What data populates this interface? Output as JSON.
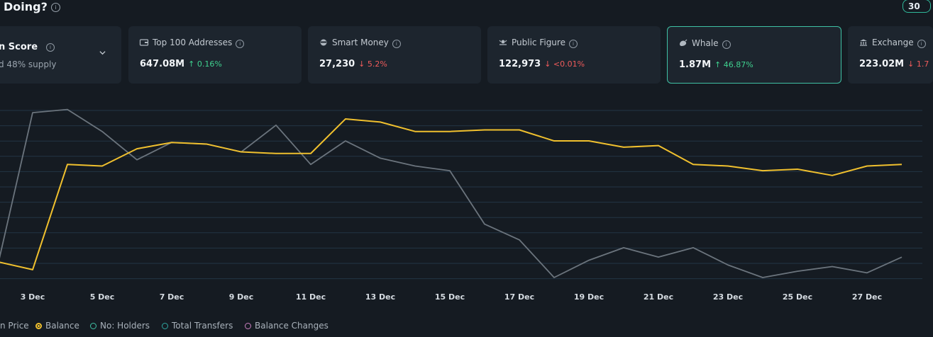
{
  "header": {
    "title": "Doing?",
    "period_button": "30"
  },
  "cards": {
    "score": {
      "name": "n Score",
      "sub": "d 48% supply"
    },
    "top100": {
      "name": "Top 100 Addresses",
      "value": "647.08M",
      "change": "↑ 0.16%",
      "icon": "wallet-icon"
    },
    "smart_money": {
      "name": "Smart Money",
      "value": "27,230",
      "change": "↓ 5.2%",
      "icon": "smart-money-icon"
    },
    "public_figure": {
      "name": "Public Figure",
      "value": "122,973",
      "change": "↓ <0.01%",
      "icon": "public-figure-icon"
    },
    "whale": {
      "name": "Whale",
      "value": "1.87M",
      "change": "↑ 46.87%",
      "icon": "whale-icon"
    },
    "exchange": {
      "name": "Exchange",
      "value": "223.02M",
      "change": "↓ 1.7",
      "icon": "bank-icon"
    }
  },
  "colors": {
    "up": "#3fd18f",
    "down": "#ef5b5b",
    "balance_line": "#f0c02e",
    "price_line": "#6b747d",
    "active_border": "#3fc1a4"
  },
  "legend": {
    "price": "n Price",
    "balance": "Balance",
    "holders": "No: Holders",
    "transfers": "Total Transfers",
    "changes": "Balance Changes"
  },
  "chart_data": {
    "type": "line",
    "x": [
      "2 Dec",
      "3 Dec",
      "4 Dec",
      "5 Dec",
      "6 Dec",
      "7 Dec",
      "8 Dec",
      "9 Dec",
      "10 Dec",
      "11 Dec",
      "12 Dec",
      "13 Dec",
      "14 Dec",
      "15 Dec",
      "16 Dec",
      "17 Dec",
      "18 Dec",
      "19 Dec",
      "20 Dec",
      "21 Dec",
      "22 Dec",
      "23 Dec",
      "24 Dec",
      "25 Dec",
      "26 Dec",
      "27 Dec",
      "28 Dec"
    ],
    "tick_labels": [
      "3 Dec",
      "5 Dec",
      "7 Dec",
      "9 Dec",
      "11 Dec",
      "13 Dec",
      "15 Dec",
      "17 Dec",
      "19 Dec",
      "21 Dec",
      "23 Dec",
      "25 Dec",
      "27 Dec"
    ],
    "series": [
      {
        "name": "Balance",
        "values": [
          10,
          5,
          72,
          71,
          82,
          86,
          85,
          80,
          79,
          79,
          101,
          99,
          93,
          93,
          94,
          94,
          87,
          87,
          83,
          84,
          72,
          71,
          68,
          69,
          65,
          71,
          72
        ]
      },
      {
        "name": "Price",
        "values": [
          8,
          105,
          107,
          93,
          75,
          86,
          85,
          80,
          97,
          72,
          87,
          76,
          71,
          68,
          34,
          24,
          0,
          11,
          19,
          13,
          19,
          8,
          0,
          4,
          7,
          3,
          13
        ]
      }
    ],
    "ylim": [
      0,
      110
    ],
    "grid": true
  }
}
